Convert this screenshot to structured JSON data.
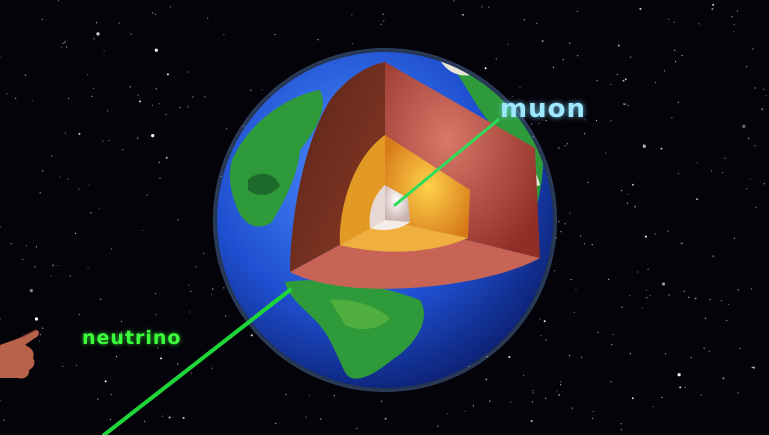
{
  "labels": {
    "muon": "muon",
    "neutrino": "neutrino"
  },
  "colors": {
    "muon_label": "#9fe6ff",
    "neutrino_label": "#3cff3c",
    "muon_track": "#2fdc5a",
    "neutrino_track": "#1fd63a",
    "ocean": "#1f4fd0",
    "land": "#2f9a3a",
    "crust": "#b8504a",
    "mantle": "#7a2f1e",
    "outer_core": "#e39a24",
    "inner_core": "#efe4e0",
    "space": "#05030a"
  },
  "icons": {
    "pointer": "pointing-hand-icon"
  }
}
